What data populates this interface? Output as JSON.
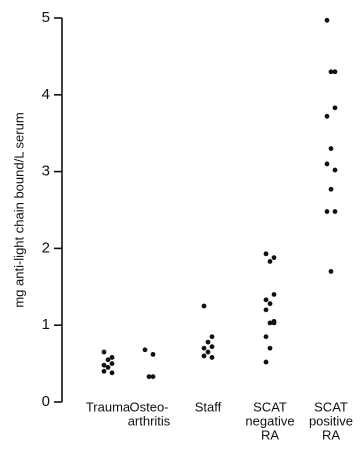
{
  "chart_data": {
    "type": "strip",
    "ylabel": "mg anti-light chain bound/L serum",
    "categories": [
      [
        "Trauma"
      ],
      [
        "Osteo-",
        "arthritis"
      ],
      [
        "Staff"
      ],
      [
        "SCAT",
        "negative",
        "RA"
      ],
      [
        "SCAT",
        "positive",
        "RA"
      ]
    ],
    "values": [
      [
        0.65,
        0.58,
        0.55,
        0.5,
        0.48,
        0.45,
        0.4,
        0.38
      ],
      [
        0.68,
        0.62,
        0.33,
        0.33
      ],
      [
        1.25,
        0.85,
        0.78,
        0.72,
        0.7,
        0.65,
        0.6,
        0.58
      ],
      [
        1.93,
        1.88,
        1.83,
        1.4,
        1.33,
        1.28,
        1.2,
        1.05,
        1.03,
        1.03,
        0.85,
        0.7,
        0.52
      ],
      [
        4.97,
        4.3,
        4.3,
        3.83,
        3.72,
        3.3,
        3.1,
        3.02,
        2.77,
        2.48,
        2.48,
        1.7
      ]
    ],
    "color": "#111111",
    "ylim": [
      0,
      5
    ],
    "yticks": [
      0,
      1,
      2,
      3,
      4,
      5
    ]
  }
}
